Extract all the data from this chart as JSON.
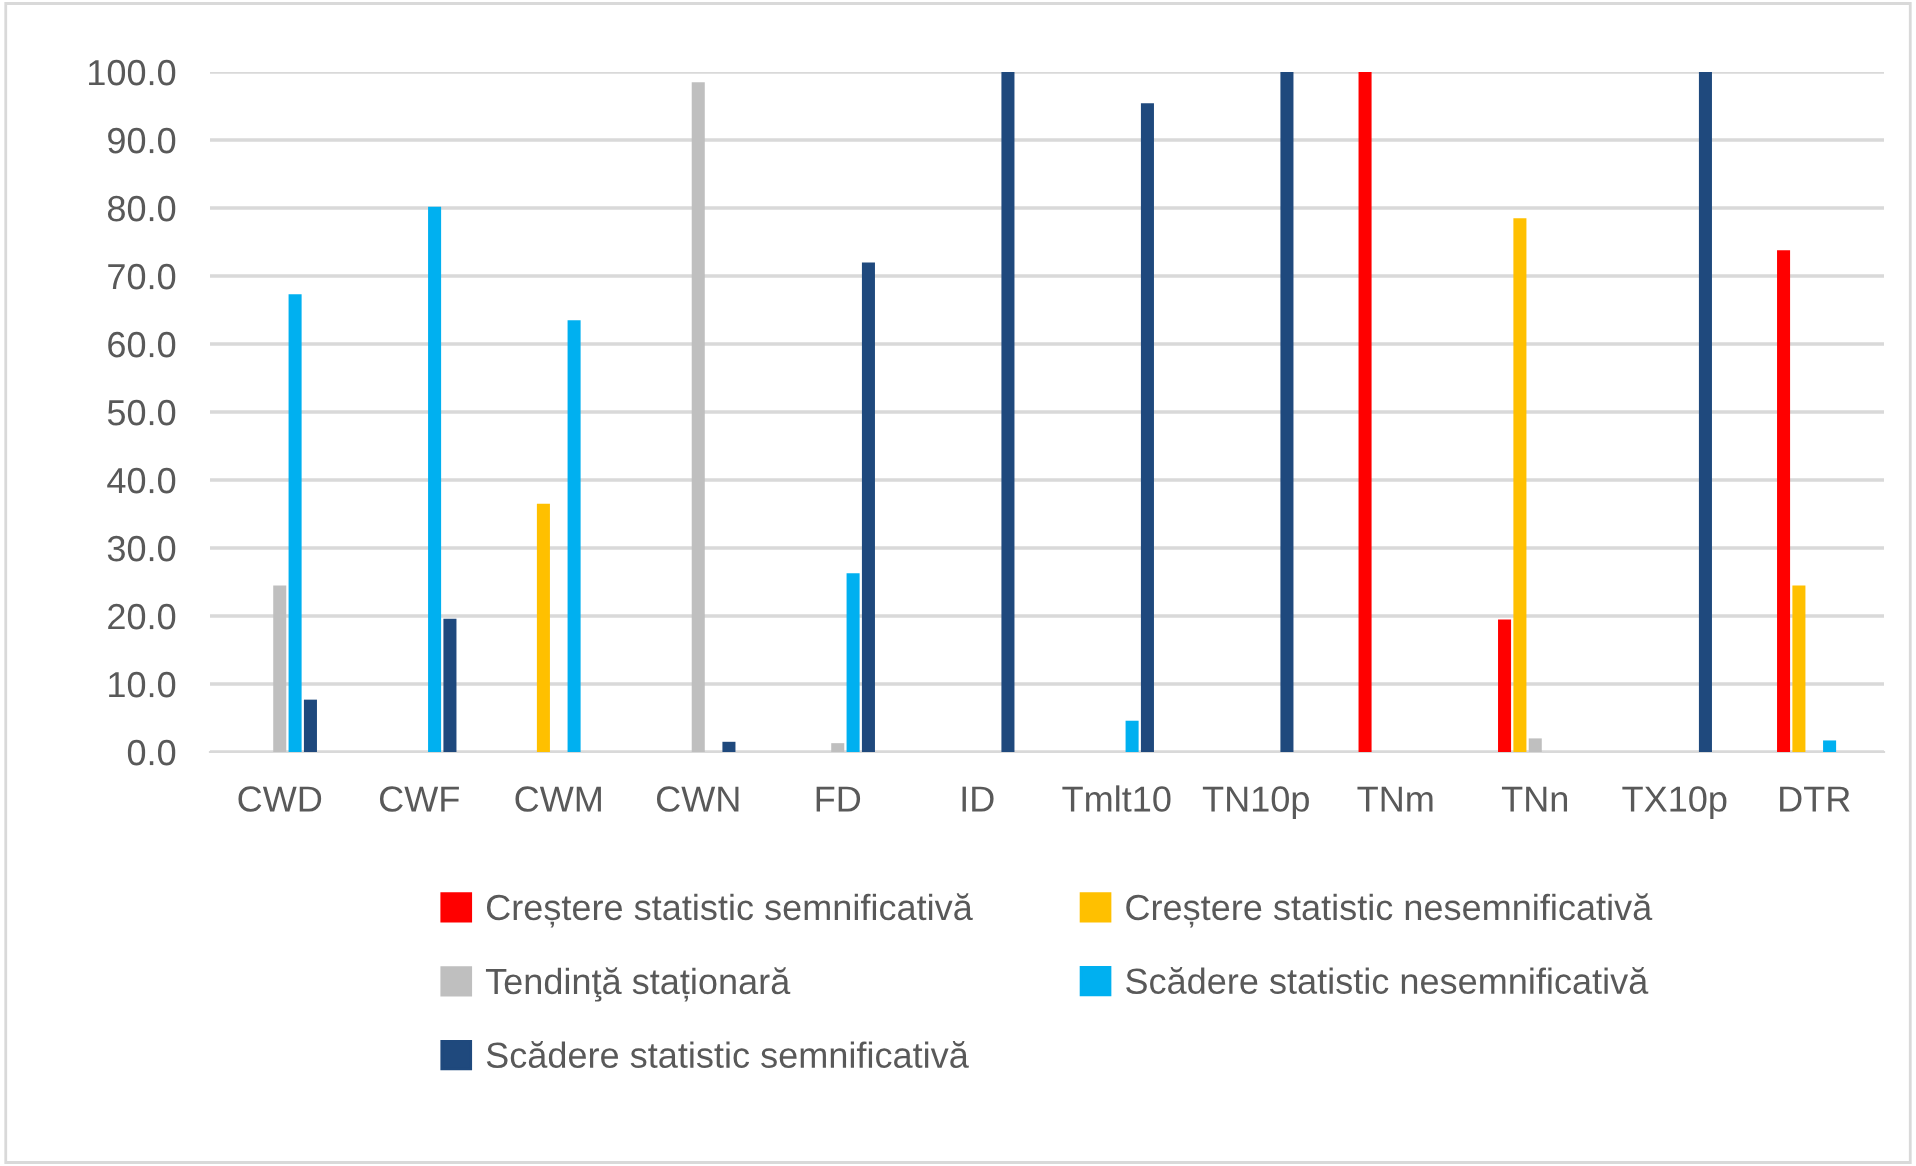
{
  "chart_data": {
    "type": "bar",
    "categories": [
      "CWD",
      "CWF",
      "CWM",
      "CWN",
      "FD",
      "ID",
      "Tmlt10",
      "TN10p",
      "TNm",
      "TNn",
      "TX10p",
      "DTR"
    ],
    "series": [
      {
        "name": "Creștere statistic semnificativă",
        "color": "#ff0000",
        "values": [
          0,
          0,
          0,
          0,
          0,
          0,
          0,
          0,
          100,
          19.5,
          0,
          73.8
        ]
      },
      {
        "name": "Creștere statistic nesemnificativă",
        "color": "#ffc000",
        "values": [
          0,
          0,
          36.5,
          0,
          0,
          0,
          0,
          0,
          0,
          78.5,
          0,
          24.5
        ]
      },
      {
        "name": "Tendinţă staționară",
        "color": "#bfbfbf",
        "values": [
          24.5,
          0,
          0,
          98.5,
          1.3,
          0,
          0,
          0,
          0,
          2.0,
          0,
          0
        ]
      },
      {
        "name": "Scădere statistic nesemnificativă",
        "color": "#00b0f0",
        "values": [
          67.3,
          80.2,
          63.5,
          0,
          26.3,
          0,
          4.6,
          0,
          0,
          0,
          0,
          1.7
        ]
      },
      {
        "name": "Scădere statistic semnificativă",
        "color": "#1f497d",
        "values": [
          7.7,
          19.6,
          0,
          1.5,
          72.0,
          100,
          95.4,
          100,
          0,
          0,
          100,
          0
        ]
      }
    ],
    "ylim": [
      0,
      100
    ],
    "yticks": [
      {
        "value": 0,
        "label": "0.0"
      },
      {
        "value": 10,
        "label": "10.0"
      },
      {
        "value": 20,
        "label": "20.0"
      },
      {
        "value": 30,
        "label": "30.0"
      },
      {
        "value": 40,
        "label": "40.0"
      },
      {
        "value": 50,
        "label": "50.0"
      },
      {
        "value": 60,
        "label": "60.0"
      },
      {
        "value": 70,
        "label": "70.0"
      },
      {
        "value": 80,
        "label": "80.0"
      },
      {
        "value": 90,
        "label": "90.0"
      },
      {
        "value": 100,
        "label": "100.0"
      }
    ],
    "grid": "y",
    "legend": "bottom"
  }
}
